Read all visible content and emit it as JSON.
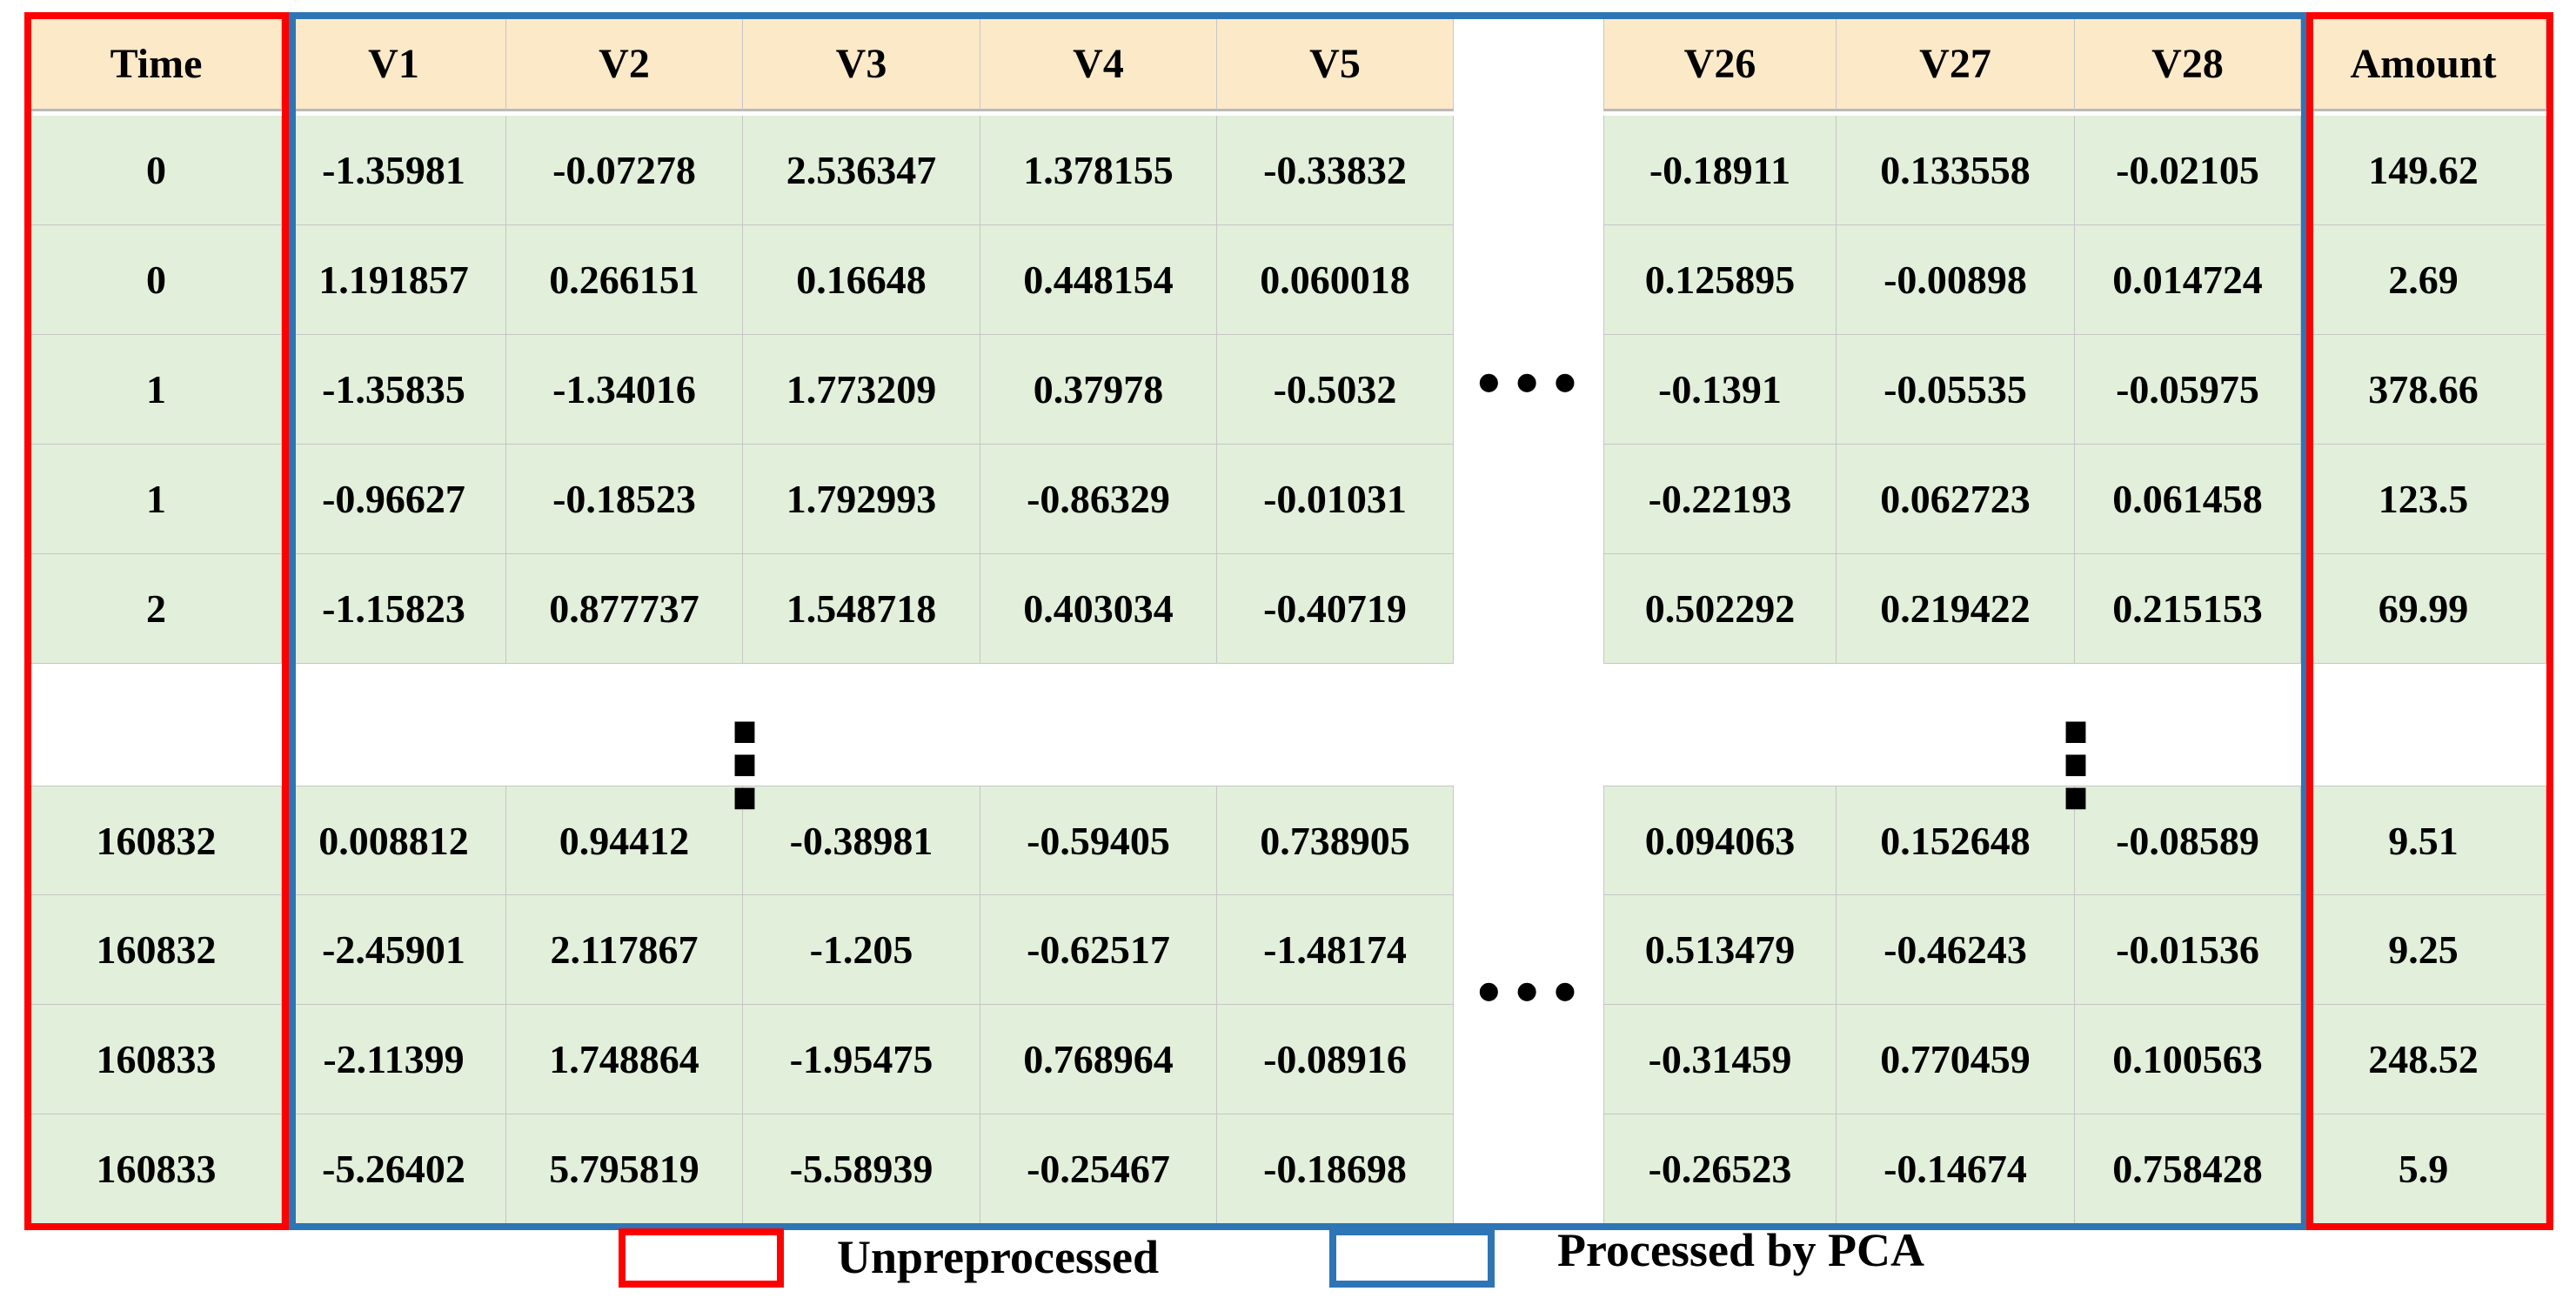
{
  "chart_data": {
    "type": "table",
    "headers": [
      "Time",
      "V1",
      "V2",
      "V3",
      "V4",
      "V5",
      "V26",
      "V27",
      "V28",
      "Amount"
    ],
    "rows_top": [
      [
        "0",
        "-1.35981",
        "-0.07278",
        "2.536347",
        "1.378155",
        "-0.33832",
        "-0.18911",
        "0.133558",
        "-0.02105",
        "149.62"
      ],
      [
        "0",
        "1.191857",
        "0.266151",
        "0.16648",
        "0.448154",
        "0.060018",
        "0.125895",
        "-0.00898",
        "0.014724",
        "2.69"
      ],
      [
        "1",
        "-1.35835",
        "-1.34016",
        "1.773209",
        "0.37978",
        "-0.5032",
        "-0.1391",
        "-0.05535",
        "-0.05975",
        "378.66"
      ],
      [
        "1",
        "-0.96627",
        "-0.18523",
        "1.792993",
        "-0.86329",
        "-0.01031",
        "-0.22193",
        "0.062723",
        "0.061458",
        "123.5"
      ],
      [
        "2",
        "-1.15823",
        "0.877737",
        "1.548718",
        "0.403034",
        "-0.40719",
        "0.502292",
        "0.219422",
        "0.215153",
        "69.99"
      ]
    ],
    "rows_bottom": [
      [
        "160832",
        "0.008812",
        "0.94412",
        "-0.38981",
        "-0.59405",
        "0.738905",
        "0.094063",
        "0.152648",
        "-0.08589",
        "9.51"
      ],
      [
        "160832",
        "-2.45901",
        "2.117867",
        "-1.205",
        "-0.62517",
        "-1.48174",
        "0.513479",
        "-0.46243",
        "-0.01536",
        "9.25"
      ],
      [
        "160833",
        "-2.11399",
        "1.748864",
        "-1.95475",
        "0.768964",
        "-0.08916",
        "-0.31459",
        "0.770459",
        "0.100563",
        "248.52"
      ],
      [
        "160833",
        "-5.26402",
        "5.795819",
        "-5.58939",
        "-0.25467",
        "-0.18698",
        "-0.26523",
        "-0.14674",
        "0.758428",
        "5.9"
      ]
    ],
    "marks": {
      "columns_omitted": "…",
      "rows_omitted": "⋮"
    },
    "legend": [
      {
        "label": "Unpreprocessed",
        "color": "#FF0000"
      },
      {
        "label": "Processed by PCA",
        "color": "#2E75B6"
      }
    ],
    "annotations": {
      "unpreprocessed_columns": [
        "Time",
        "Amount"
      ],
      "pca_processed_columns": [
        "V1",
        "V2",
        "V3",
        "V4",
        "V5",
        "V26",
        "V27",
        "V28"
      ]
    },
    "colors": {
      "header_fill": "#FCE9C8",
      "cell_fill": "#E2EFDA",
      "gridline": "#C6C6C6",
      "unpreprocessed_box": "#FF0000",
      "pca_box": "#2E75B6"
    }
  }
}
